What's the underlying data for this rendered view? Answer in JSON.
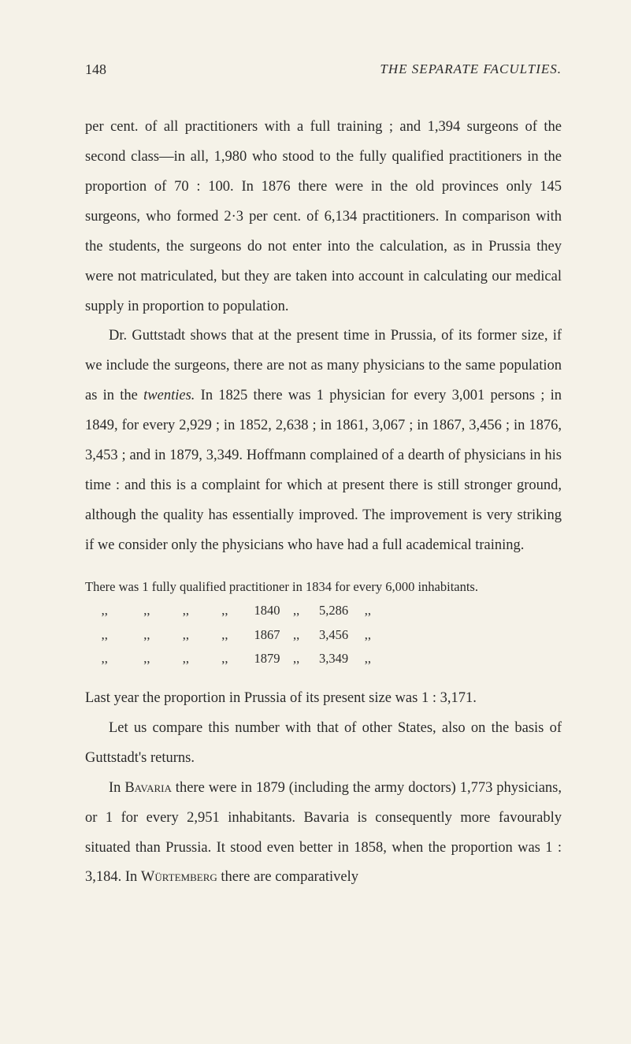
{
  "header": {
    "page_number": "148",
    "title": "THE SEPARATE FACULTIES."
  },
  "paragraphs": {
    "p1": "per cent. of all practitioners with a full training ; and 1,394 surgeons of the second class—in all, 1,980 who stood to the fully qualified practitioners in the proportion of 70 : 100. In 1876 there were in the old provinces only 145 surgeons, who formed 2·3 per cent. of 6,134 practitioners. In comparison with the students, the surgeons do not enter into the calculation, as in Prussia they were not matriculated, but they are taken into account in calculating our medical supply in proportion to population.",
    "p2_pre": "Dr. Guttstadt shows that at the present time in Prussia, of its former size, if we include the surgeons, there are not as many physicians to the same population as in the ",
    "p2_italic": "twenties.",
    "p2_post": " In 1825 there was 1 physician for every 3,001 persons ; in 1849, for every 2,929 ; in 1852, 2,638 ; in 1861, 3,067 ; in 1867, 3,456 ; in 1876, 3,453 ; and in 1879, 3,349. Hoffmann complained of a dearth of physicians in his time : and this is a complaint for which at present there is still stronger ground, although the quality has essentially improved. The improvement is very striking if we consider only the physicians who have had a full academical training.",
    "p3": "Last year the proportion in Prussia of its present size was 1 : 3,171.",
    "p4": "Let us compare this number with that of other States, also on the basis of Guttstadt's returns.",
    "p5_pre": "In ",
    "p5_sc1": "Bavaria",
    "p5_mid1": " there were in 1879 (including the army doctors) 1,773 physicians, or 1 for every 2,951 inhabitants. Bavaria is consequently more favourably situated than Prussia. It stood even better in 1858, when the proportion was 1 : 3,184. In ",
    "p5_sc2": "Würtemberg",
    "p5_post": " there are comparatively"
  },
  "table": {
    "row1": "There was 1 fully qualified practitioner in 1834 for every 6,000 inhabitants.",
    "row2": "     ,,           ,,          ,,          ,,        1840    ,,      5,286     ,,",
    "row3": "     ,,           ,,          ,,          ,,        1867    ,,      3,456     ,,",
    "row4": "     ,,           ,,          ,,          ,,        1879    ,,      3,349     ,,"
  },
  "colors": {
    "background": "#f5f2e8",
    "text": "#2a2a2a"
  },
  "typography": {
    "body_fontsize": 18.5,
    "header_fontsize": 18,
    "table_fontsize": 16.5,
    "line_height": 2.05,
    "font_family": "Georgia, Times New Roman, serif"
  }
}
